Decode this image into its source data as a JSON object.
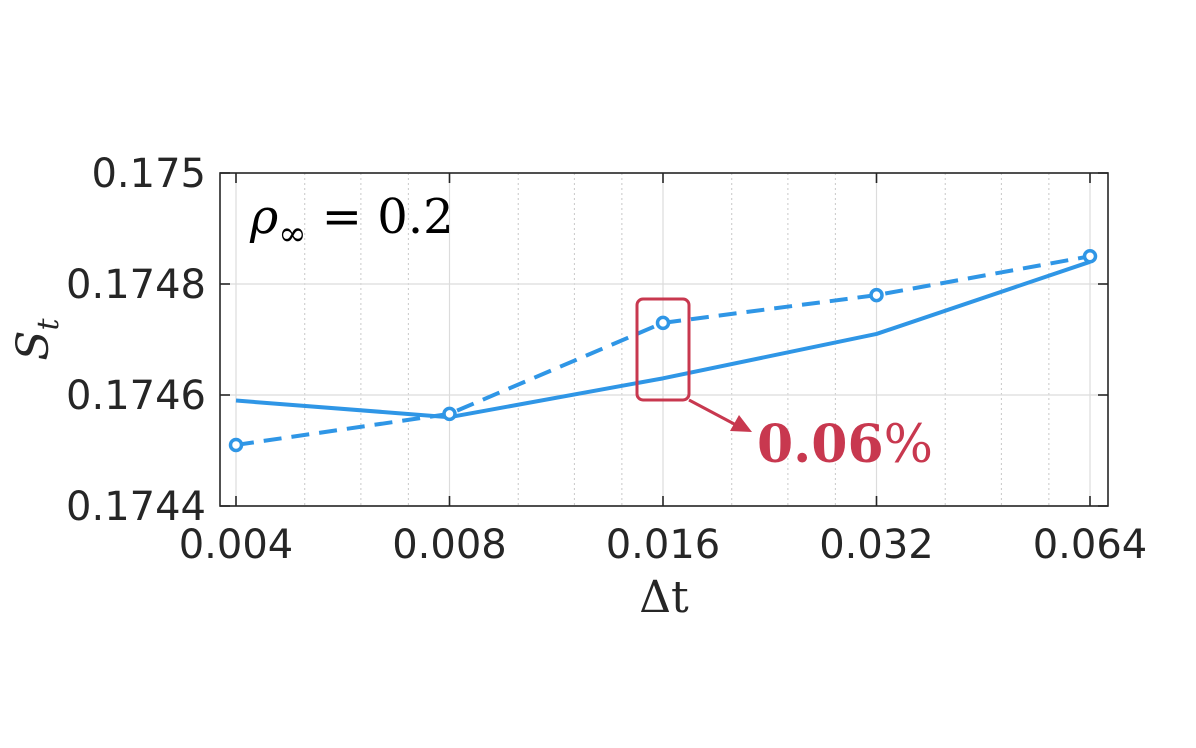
{
  "chart_data": {
    "type": "line",
    "xscale": "log2",
    "x": [
      0.004,
      0.008,
      0.016,
      0.032,
      0.064
    ],
    "xticks": [
      "0.004",
      "0.008",
      "0.016",
      "0.032",
      "0.064"
    ],
    "xlabel": "Δt",
    "ylabel": "S",
    "ylabel_sub": "t",
    "ylim": [
      0.1744,
      0.175
    ],
    "yticks": [
      "0.1744",
      "0.1746",
      "0.1748",
      "0.175"
    ],
    "grid": true,
    "series": [
      {
        "style": "solid",
        "markers": false,
        "color": "#2f96e6",
        "values": [
          0.17459,
          0.17456,
          0.17463,
          0.17471,
          0.17484
        ]
      },
      {
        "style": "dashed",
        "markers": true,
        "color": "#2f96e6",
        "values": [
          0.17451,
          0.174566,
          0.17473,
          0.17478,
          0.17485
        ]
      }
    ],
    "annotations": {
      "rho": {
        "symbol": "ρ",
        "sub": "∞",
        "rest": " = 0.2"
      },
      "highlight": {
        "text": "0.06",
        "suffix": "%",
        "color": "#c8384f",
        "at_x": 0.016
      }
    }
  }
}
